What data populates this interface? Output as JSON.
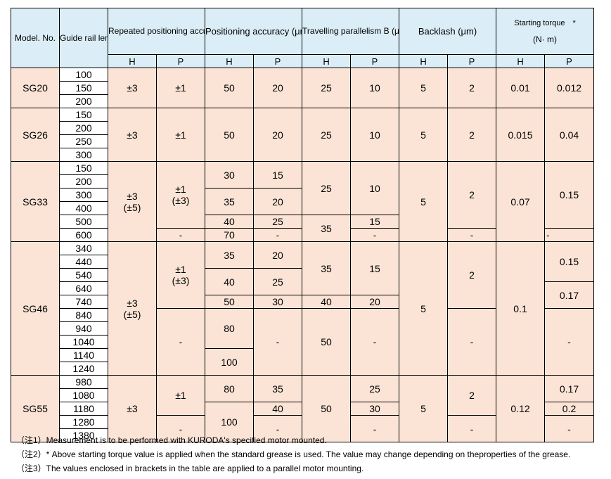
{
  "header": {
    "model_no": "Model. No.",
    "guide_rail_length": "Guide rail length (mm)",
    "repeated_positioning_accuracy": "Repeated positioning accuracy (μm)",
    "positioning_accuracy": "Positioning accuracy (μm)",
    "travelling_parallelism": "Travelling parallelism B (μm)",
    "backlash": "Backlash (μm)",
    "starting_torque": "Starting torque　*",
    "starting_torque_unit": "(N· m)",
    "h": "H",
    "p": "P"
  },
  "models": {
    "sg20": {
      "name": "SG20",
      "lengths": [
        "100",
        "150",
        "200"
      ],
      "rep_h": "±3",
      "rep_p": "±1",
      "pos_h": "50",
      "pos_p": "20",
      "par_h": "25",
      "par_p": "10",
      "back_h": "5",
      "back_p": "2",
      "torque_h": "0.01",
      "torque_p": "0.012"
    },
    "sg26": {
      "name": "SG26",
      "lengths": [
        "150",
        "200",
        "250",
        "300"
      ],
      "rep_h": "±3",
      "rep_p": "±1",
      "pos_h": "50",
      "pos_p": "20",
      "par_h": "25",
      "par_p": "10",
      "back_h": "5",
      "back_p": "2",
      "torque_h": "0.015",
      "torque_p": "0.04"
    },
    "sg33": {
      "name": "SG33",
      "lengths": [
        "150",
        "200",
        "300",
        "400",
        "500",
        "600"
      ],
      "rep_h": "±3",
      "rep_h2": "(±5)",
      "rep_p": "±1",
      "rep_p2": "(±3)",
      "rep_p_600": "-",
      "pos_h_a": "30",
      "pos_p_a": "15",
      "pos_h_b": "35",
      "pos_p_b": "20",
      "pos_h_c": "40",
      "pos_p_c": "25",
      "pos_h_d": "70",
      "pos_p_d": "-",
      "par_h_a": "25",
      "par_p_a": "10",
      "par_h_b": "35",
      "par_p_b": "15",
      "par_p_c": "-",
      "back_h": "5",
      "back_p": "2",
      "back_p_600": "-",
      "torque_h": "0.07",
      "torque_p": "0.15",
      "torque_p_600": "-"
    },
    "sg46": {
      "name": "SG46",
      "lengths": [
        "340",
        "440",
        "540",
        "640",
        "740",
        "840",
        "940",
        "1040",
        "1140",
        "1240"
      ],
      "rep_h": "±3",
      "rep_h2": "(±5)",
      "rep_p": "±1",
      "rep_p2": "(±3)",
      "rep_p_b": "-",
      "pos_h_a": "35",
      "pos_p_a": "20",
      "pos_h_b": "40",
      "pos_p_b": "25",
      "pos_h_c": "50",
      "pos_p_c": "30",
      "pos_h_d": "80",
      "pos_h_e": "100",
      "pos_p_d": "-",
      "par_h_a": "35",
      "par_p_a": "15",
      "par_h_b": "40",
      "par_p_b": "20",
      "par_h_c": "50",
      "par_p_c": "-",
      "back_h": "5",
      "back_p": "2",
      "back_p_b": "-",
      "torque_h": "0.1",
      "torque_p_a": "0.15",
      "torque_p_b": "0.17",
      "torque_p_c": "-"
    },
    "sg55": {
      "name": "SG55",
      "lengths": [
        "980",
        "1080",
        "1180",
        "1280",
        "1380"
      ],
      "rep_h": "±3",
      "rep_p": "±1",
      "rep_p_b": "-",
      "pos_h_a": "80",
      "pos_p_a": "35",
      "pos_p_b": "40",
      "pos_h_b": "100",
      "pos_p_c": "-",
      "par_h": "50",
      "par_p_a": "25",
      "par_p_b": "30",
      "par_p_c": "-",
      "back_h": "5",
      "back_p": "2",
      "back_p_b": "-",
      "torque_h": "0.12",
      "torque_p_a": "0.17",
      "torque_p_b": "0.2",
      "torque_p_c": "-"
    }
  },
  "notes": [
    "（注1）Measurement is to be performed with KURODA's specified motor mounted.",
    "（注2）* Above starting torque value is applied when the standard grease is used. The value may change depending on theproperties of the grease.",
    "（注3）The values enclosed in brackets in the table are applied to a parallel motor mounting."
  ]
}
